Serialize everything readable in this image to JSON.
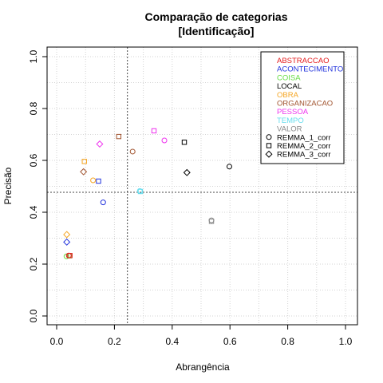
{
  "chart_data": {
    "type": "scatter",
    "title": "Comparação de categorias",
    "subtitle": "[Identificação]",
    "xlabel": "Abrangência",
    "ylabel": "Precisão",
    "xlim": [
      0,
      1
    ],
    "ylim": [
      0,
      1
    ],
    "xticks": [
      "0.0",
      "0.2",
      "0.4",
      "0.6",
      "0.8",
      "1.0"
    ],
    "yticks": [
      "0.0",
      "0.2",
      "0.4",
      "0.6",
      "0.8",
      "1.0"
    ],
    "grid": true,
    "legend_position": "top-right",
    "reference_lines": {
      "x": 0.245,
      "y": 0.477
    },
    "categories": [
      {
        "name": "ABSTRACCAO",
        "color": "#e41a1c"
      },
      {
        "name": "ACONTECIMENTO",
        "color": "#2233dd"
      },
      {
        "name": "COISA",
        "color": "#66dd44"
      },
      {
        "name": "LOCAL",
        "color": "#000000"
      },
      {
        "name": "OBRA",
        "color": "#f5a623"
      },
      {
        "name": "ORGANIZACAO",
        "color": "#a0522d"
      },
      {
        "name": "PESSOA",
        "color": "#ee33ee"
      },
      {
        "name": "TEMPO",
        "color": "#66ddee"
      },
      {
        "name": "VALOR",
        "color": "#888888"
      }
    ],
    "series": [
      {
        "name": "REMMA_1_corr",
        "marker": "circle"
      },
      {
        "name": "REMMA_2_corr",
        "marker": "square"
      },
      {
        "name": "REMMA_3_corr",
        "marker": "diamond"
      }
    ],
    "points": [
      {
        "category": "LOCAL",
        "series": "REMMA_1_corr",
        "x": 0.598,
        "y": 0.576
      },
      {
        "category": "LOCAL",
        "series": "REMMA_2_corr",
        "x": 0.442,
        "y": 0.67
      },
      {
        "category": "LOCAL",
        "series": "REMMA_3_corr",
        "x": 0.451,
        "y": 0.553
      },
      {
        "category": "ORGANIZACAO",
        "series": "REMMA_1_corr",
        "x": 0.263,
        "y": 0.634
      },
      {
        "category": "ORGANIZACAO",
        "series": "REMMA_2_corr",
        "x": 0.215,
        "y": 0.692
      },
      {
        "category": "ORGANIZACAO",
        "series": "REMMA_3_corr",
        "x": 0.093,
        "y": 0.556
      },
      {
        "category": "PESSOA",
        "series": "REMMA_1_corr",
        "x": 0.373,
        "y": 0.677
      },
      {
        "category": "PESSOA",
        "series": "REMMA_2_corr",
        "x": 0.337,
        "y": 0.714
      },
      {
        "category": "PESSOA",
        "series": "REMMA_3_corr",
        "x": 0.149,
        "y": 0.663
      },
      {
        "category": "OBRA",
        "series": "REMMA_1_corr",
        "x": 0.126,
        "y": 0.523
      },
      {
        "category": "OBRA",
        "series": "REMMA_2_corr",
        "x": 0.096,
        "y": 0.596
      },
      {
        "category": "OBRA",
        "series": "REMMA_3_corr",
        "x": 0.035,
        "y": 0.314
      },
      {
        "category": "ACONTECIMENTO",
        "series": "REMMA_1_corr",
        "x": 0.161,
        "y": 0.438
      },
      {
        "category": "ACONTECIMENTO",
        "series": "REMMA_2_corr",
        "x": 0.145,
        "y": 0.52
      },
      {
        "category": "ACONTECIMENTO",
        "series": "REMMA_3_corr",
        "x": 0.035,
        "y": 0.285
      },
      {
        "category": "TEMPO",
        "series": "REMMA_1_corr",
        "x": 0.288,
        "y": 0.482
      },
      {
        "category": "TEMPO",
        "series": "REMMA_2_corr",
        "x": 0.29,
        "y": 0.48
      },
      {
        "category": "VALOR",
        "series": "REMMA_1_corr",
        "x": 0.536,
        "y": 0.369
      },
      {
        "category": "VALOR",
        "series": "REMMA_2_corr",
        "x": 0.536,
        "y": 0.365
      },
      {
        "category": "COISA",
        "series": "REMMA_1_corr",
        "x": 0.034,
        "y": 0.23
      },
      {
        "category": "COISA",
        "series": "REMMA_2_corr",
        "x": 0.044,
        "y": 0.232
      },
      {
        "category": "ABSTRACCAO",
        "series": "REMMA_1_corr",
        "x": 0.042,
        "y": 0.233
      },
      {
        "category": "ABSTRACCAO",
        "series": "REMMA_2_corr",
        "x": 0.046,
        "y": 0.233
      }
    ]
  }
}
